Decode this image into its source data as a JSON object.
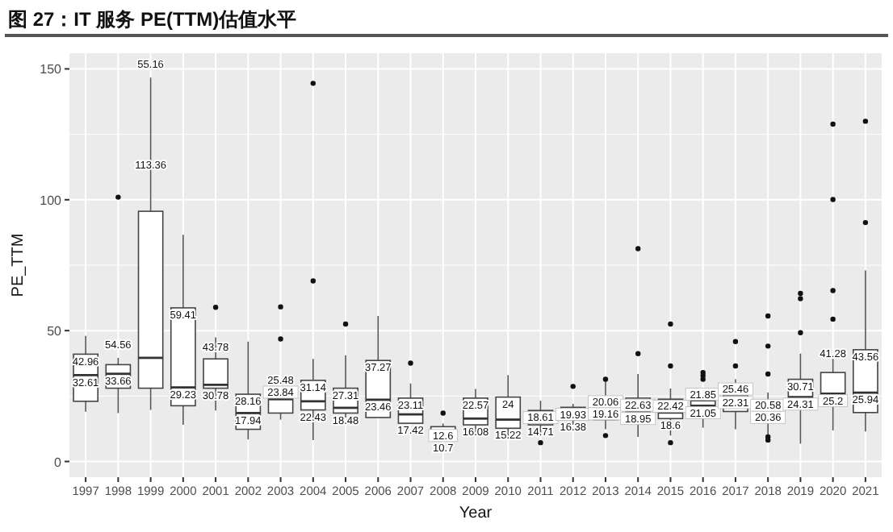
{
  "chart_data": {
    "type": "box",
    "title": "图 27：IT 服务 PE(TTM)估值水平",
    "xlabel": "Year",
    "ylabel": "PE_TTM",
    "categories": [
      "1997",
      "1998",
      "1999",
      "2000",
      "2001",
      "2002",
      "2003",
      "2004",
      "2005",
      "2006",
      "2007",
      "2008",
      "2009",
      "2010",
      "2011",
      "2012",
      "2013",
      "2014",
      "2015",
      "2016",
      "2017",
      "2018",
      "2019",
      "2020",
      "2021"
    ],
    "ylim": [
      -6,
      156
    ],
    "yticks": [
      0,
      50,
      100,
      150
    ],
    "grid": true,
    "boxes": [
      {
        "low": 19,
        "q1": 23,
        "median": 33,
        "q3": 41,
        "high": 48
      },
      {
        "low": 18.5,
        "q1": 28,
        "median": 33.5,
        "q3": 37,
        "high": 39.6,
        "outliers": [
          101
        ]
      },
      {
        "low": 19.7,
        "q1": 28,
        "median": 39.6,
        "q3": 95.6,
        "high": 146.7
      },
      {
        "low": 14,
        "q1": 21.3,
        "median": 28.3,
        "q3": 58.7,
        "high": 86.6
      },
      {
        "low": 19.5,
        "q1": 28,
        "median": 29.3,
        "q3": 39.2,
        "high": 47.4,
        "outliers": [
          58.9
        ]
      },
      {
        "low": 8.4,
        "q1": 12.3,
        "median": 18.5,
        "q3": 25.7,
        "high": 45.8
      },
      {
        "low": 16,
        "q1": 18.5,
        "median": 23.8,
        "q3": 26.3,
        "high": 28.3,
        "outliers": [
          59.1,
          46.8
        ]
      },
      {
        "low": 8.2,
        "q1": 19.7,
        "median": 23,
        "q3": 31,
        "high": 39.2,
        "outliers": [
          144.5,
          69
        ]
      },
      {
        "low": 16.8,
        "q1": 18.5,
        "median": 20.5,
        "q3": 28,
        "high": 40.6,
        "outliers": [
          52.5
        ]
      },
      {
        "low": 16.8,
        "q1": 16.8,
        "median": 23.6,
        "q3": 38.6,
        "high": 55.6
      },
      {
        "low": 14.6,
        "q1": 14.6,
        "median": 18,
        "q3": 24.2,
        "high": 29.8,
        "outliers": [
          37.6
        ]
      },
      {
        "low": 10.3,
        "q1": 10.3,
        "median": 11.5,
        "q3": 13.3,
        "high": 14.5,
        "outliers": [
          18.5
        ]
      },
      {
        "low": 10.3,
        "q1": 14,
        "median": 16.4,
        "q3": 24.2,
        "high": 27.7
      },
      {
        "low": 8.4,
        "q1": 12.7,
        "median": 16,
        "q3": 24.6,
        "high": 33
      },
      {
        "low": 10.9,
        "q1": 14,
        "median": 15.8,
        "q3": 19.5,
        "high": 23.2,
        "outliers": [
          7.2
        ]
      },
      {
        "low": 14,
        "q1": 16,
        "median": 17.6,
        "q3": 20.7,
        "high": 22,
        "outliers": [
          28.7
        ]
      },
      {
        "low": 12.3,
        "q1": 16,
        "median": 18.9,
        "q3": 23.2,
        "high": 31.4,
        "outliers": [
          31.4,
          9.9
        ]
      },
      {
        "low": 9.4,
        "q1": 15.6,
        "median": 19.1,
        "q3": 24.2,
        "high": 33.4,
        "outliers": [
          81.3,
          41.2
        ]
      },
      {
        "low": 9.9,
        "q1": 16.4,
        "median": 18.7,
        "q3": 23.8,
        "high": 27.9,
        "outliers": [
          52.5,
          36.5,
          7.2
        ]
      },
      {
        "low": 12.9,
        "q1": 16.8,
        "median": 21.3,
        "q3": 23.2,
        "high": 26.3,
        "outliers": [
          34,
          32.8,
          31.4
        ]
      },
      {
        "low": 12.3,
        "q1": 19.1,
        "median": 22.2,
        "q3": 25.2,
        "high": 31.4,
        "outliers": [
          45.8,
          36.5
        ]
      },
      {
        "low": 10.3,
        "q1": 16.4,
        "median": 20.5,
        "q3": 23.2,
        "high": 26.3,
        "outliers": [
          55.6,
          44.1,
          33.4,
          9.4,
          8.2
        ]
      },
      {
        "low": 6.8,
        "q1": 20.1,
        "median": 24.6,
        "q3": 31.4,
        "high": 41.2,
        "outliers": [
          64.2,
          62.2,
          49.2
        ]
      },
      {
        "low": 11.9,
        "q1": 22.2,
        "median": 25.9,
        "q3": 34,
        "high": 39.2,
        "outliers": [
          128.9,
          100.1,
          65.3,
          54.4
        ]
      },
      {
        "low": 11.5,
        "q1": 18.7,
        "median": 26.3,
        "q3": 42.7,
        "high": 73,
        "outliers": [
          130,
          91.3
        ]
      }
    ],
    "annotations": [
      {
        "text": "42.96",
        "x": "1997",
        "y": 42.96
      },
      {
        "text": "32.61",
        "x": "1997",
        "y": 32.61
      },
      "54.56",
      {
        "text": "33.66",
        "x": "1998",
        "y": 33.66
      },
      {
        "text": "113.36",
        "x": "1999",
        "y": 113.36
      },
      "55.16",
      {
        "text": "59.41",
        "x": "2000",
        "y": 59.41
      },
      {
        "text": "29.23",
        "x": "2000",
        "y": 29.23
      },
      {
        "text": "43.78",
        "x": "2001",
        "y": 43.78
      },
      {
        "text": "30.78",
        "x": "2001",
        "y": 30.78
      },
      {
        "text": "28.16",
        "x": "2002",
        "y": 28.16
      },
      {
        "text": "17.94",
        "x": "2002",
        "y": 17.94
      },
      {
        "text": "25.48",
        "x": "2003",
        "y": 25.48
      },
      {
        "text": "23.84",
        "x": "2003",
        "y": 23.84
      },
      {
        "text": "31.14",
        "x": "2004",
        "y": 31.14
      },
      {
        "text": "22.43",
        "x": "2004",
        "y": 22.43
      },
      {
        "text": "27.31",
        "x": "2005",
        "y": 27.31
      },
      {
        "text": "18.48",
        "x": "2005",
        "y": 18.48
      },
      {
        "text": "37.27",
        "x": "2006",
        "y": 37.27
      },
      {
        "text": "23.46",
        "x": "2006",
        "y": 23.46
      },
      {
        "text": "23.11",
        "x": "2007",
        "y": 23.11
      },
      {
        "text": "17.42",
        "x": "2007",
        "y": 17.42
      },
      {
        "text": "12.6",
        "x": "2008",
        "y": 12.6
      },
      {
        "text": "10.7",
        "x": "2008",
        "y": 10.7
      },
      {
        "text": "22.57",
        "x": "2009",
        "y": 22.57
      },
      {
        "text": "16.08",
        "x": "2009",
        "y": 16.08
      },
      {
        "text": "24",
        "x": "2010",
        "y": 24
      },
      {
        "text": "15.22",
        "x": "2010",
        "y": 15.22
      },
      {
        "text": "18.61",
        "x": "2011",
        "y": 18.61
      },
      {
        "text": "14.71",
        "x": "2011",
        "y": 14.71
      },
      {
        "text": "19.93",
        "x": "2012",
        "y": 19.93
      },
      {
        "text": "16.38",
        "x": "2012",
        "y": 16.38
      },
      {
        "text": "20.06",
        "x": "2013",
        "y": 20.06
      },
      {
        "text": "19.16",
        "x": "2013",
        "y": 19.16
      },
      {
        "text": "22.63",
        "x": "2014",
        "y": 22.63
      },
      {
        "text": "18.95",
        "x": "2014",
        "y": 18.95
      },
      {
        "text": "22.42",
        "x": "2015",
        "y": 22.42
      },
      {
        "text": "18.6",
        "x": "2015",
        "y": 18.6
      },
      {
        "text": "21.85",
        "x": "2016",
        "y": 21.85
      },
      {
        "text": "21.05",
        "x": "2016",
        "y": 21.05
      },
      {
        "text": "25.46",
        "x": "2017",
        "y": 25.46
      },
      {
        "text": "22.31",
        "x": "2017",
        "y": 22.31
      },
      {
        "text": "20.58",
        "x": "2018",
        "y": 20.58
      },
      {
        "text": "20.36",
        "x": "2018",
        "y": 20.36
      },
      {
        "text": "30.71",
        "x": "2019",
        "y": 30.71
      },
      {
        "text": "24.31",
        "x": "2019",
        "y": 24.31
      },
      {
        "text": "41.28",
        "x": "2020",
        "y": 41.28
      },
      {
        "text": "25.2",
        "x": "2020",
        "y": 25.2
      },
      {
        "text": "43.56",
        "x": "2021",
        "y": 43.56
      },
      {
        "text": "25.94",
        "x": "2021",
        "y": 25.94
      }
    ]
  }
}
